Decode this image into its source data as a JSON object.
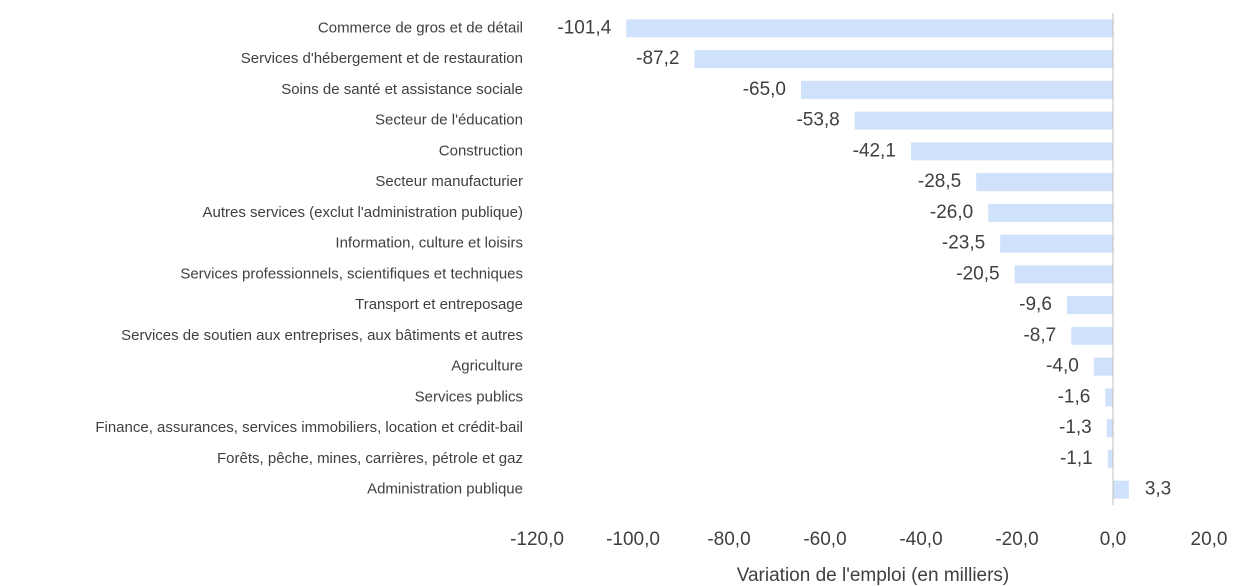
{
  "chart_data": {
    "type": "bar",
    "orientation": "horizontal",
    "x_label": "Variation de l'emploi (en milliers)",
    "categories": [
      "Commerce de gros et de détail",
      "Services d'hébergement et de restauration",
      "Soins de santé et assistance sociale",
      "Secteur de l'éducation",
      "Construction",
      "Secteur manufacturier",
      "Autres services (exclut l'administration publique)",
      "Information, culture et loisirs",
      "Services professionnels, scientifiques et techniques",
      "Transport et entreposage",
      "Services de soutien aux entreprises, aux bâtiments et autres",
      "Agriculture",
      "Services publics",
      "Finance, assurances, services immobiliers, location et crédit-bail",
      "Forêts, pêche, mines, carrières, pétrole et gaz",
      "Administration publique"
    ],
    "values": [
      -101.4,
      -87.2,
      -65.0,
      -53.8,
      -42.1,
      -28.5,
      -26.0,
      -23.5,
      -20.5,
      -9.6,
      -8.7,
      -4.0,
      -1.6,
      -1.3,
      -1.1,
      3.3
    ],
    "value_labels": [
      "-101,4",
      "-87,2",
      "-65,0",
      "-53,8",
      "-42,1",
      "-28,5",
      "-26,0",
      "-23,5",
      "-20,5",
      "-9,6",
      "-8,7",
      "-4,0",
      "-1,6",
      "-1,3",
      "-1,1",
      "3,3"
    ],
    "color": "#d0e1fb",
    "xlim": [
      -120,
      20
    ],
    "xticks": [
      {
        "value": -120,
        "label": "-120,0"
      },
      {
        "value": -100,
        "label": "-100,0"
      },
      {
        "value": -80,
        "label": "-80,0"
      },
      {
        "value": -60,
        "label": "-60,0"
      },
      {
        "value": -40,
        "label": "-40,0"
      },
      {
        "value": -20,
        "label": "-20,0"
      },
      {
        "value": 0,
        "label": "0,0"
      },
      {
        "value": 20,
        "label": "20,0"
      }
    ],
    "grid": false
  }
}
